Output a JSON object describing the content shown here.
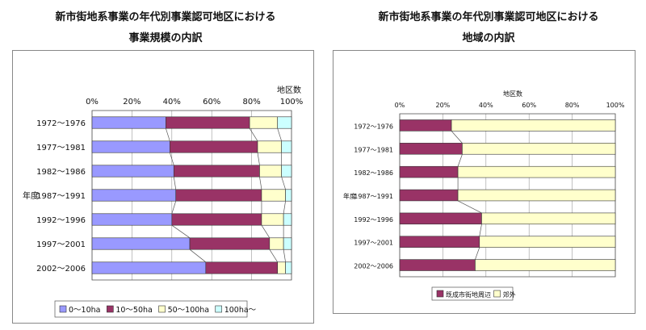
{
  "charts": {
    "left": {
      "title_line1": "新市街地系事業の年代別事業認可地区における",
      "title_line2": "事業規模の内訳",
      "unit_label": "地区数"
    },
    "right": {
      "title_line1": "新市街地系事業の年代別事業認可地区における",
      "title_line2": "地域の内訳",
      "unit_label": "地区数"
    }
  },
  "chart_data": [
    {
      "type": "bar",
      "orientation": "horizontal",
      "stacked": "percent",
      "title": "新市街地系事業の年代別事業認可地区における 事業規模の内訳",
      "ylabel": "年度",
      "unit_label": "地区数",
      "xlim": [
        0,
        100
      ],
      "x_ticks": [
        "0%",
        "20%",
        "40%",
        "60%",
        "80%",
        "100%"
      ],
      "categories": [
        "1972～1976",
        "1977～1981",
        "1982～1986",
        "1987～1991",
        "1992～1996",
        "1997～2001",
        "2002～2006"
      ],
      "series": [
        {
          "name": "0～10ha",
          "color": "#9999ff",
          "values": [
            37,
            39,
            41,
            42,
            40,
            49,
            57
          ]
        },
        {
          "name": "10～50ha",
          "color": "#993366",
          "values": [
            42,
            44,
            43,
            43,
            45,
            40,
            36
          ]
        },
        {
          "name": "50～100ha",
          "color": "#ffffcc",
          "values": [
            14,
            12,
            11,
            12,
            11,
            7,
            4
          ]
        },
        {
          "name": "100ha～",
          "color": "#ccffff",
          "values": [
            7,
            5,
            5,
            3,
            4,
            4,
            3
          ]
        }
      ],
      "legend": "bottom"
    },
    {
      "type": "bar",
      "orientation": "horizontal",
      "stacked": "percent",
      "title": "新市街地系事業の年代別事業認可地区における 地域の内訳",
      "ylabel": "年度",
      "unit_label": "地区数",
      "xlim": [
        0,
        100
      ],
      "x_ticks": [
        "0%",
        "20%",
        "40%",
        "60%",
        "80%",
        "100%"
      ],
      "categories": [
        "1972～1976",
        "1977～1981",
        "1982～1986",
        "1987～1991",
        "1992～1996",
        "1997～2001",
        "2002～2006"
      ],
      "series": [
        {
          "name": "既成市街地周辺",
          "color": "#993366",
          "values": [
            24,
            29,
            27,
            27,
            38,
            37,
            35
          ]
        },
        {
          "name": "郊外",
          "color": "#ffffcc",
          "values": [
            76,
            71,
            73,
            73,
            62,
            63,
            65
          ]
        }
      ],
      "legend": "bottom-left"
    }
  ]
}
